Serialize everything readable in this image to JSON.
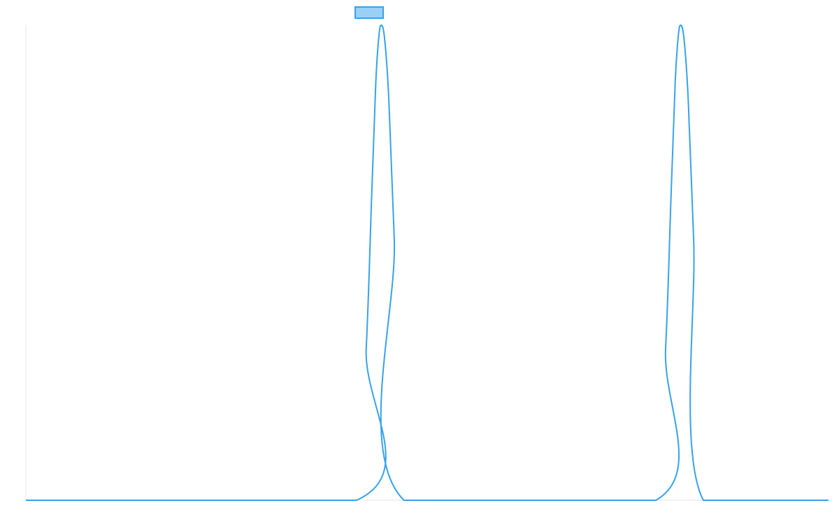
{
  "colors": {
    "line": "#36a2eb",
    "legend_fill": "#9ad0f5",
    "axis": "#e6e6e6",
    "background": "#ffffff"
  },
  "chart_data": {
    "type": "line",
    "title": "",
    "xlabel": "",
    "ylabel": "",
    "grid": false,
    "legend": "top-center",
    "tick_labels_visible": false,
    "xlim": [
      0,
      100
    ],
    "ylim": [
      0,
      1
    ],
    "series": [
      {
        "x": [
          0,
          41.2,
          42.4,
          43.1,
          43.6,
          44.0,
          44.3,
          44.7,
          45.2,
          45.9,
          47.1,
          78.5,
          79.7,
          80.4,
          80.9,
          81.3,
          81.6,
          82.0,
          82.5,
          83.2,
          84.4,
          100
        ],
        "values": [
          0,
          0,
          0.32,
          0.65,
          0.88,
          0.98,
          1.0,
          0.97,
          0.85,
          0.55,
          0,
          0,
          0.32,
          0.65,
          0.88,
          0.98,
          1.0,
          0.97,
          0.85,
          0.55,
          0,
          0
        ]
      }
    ]
  }
}
